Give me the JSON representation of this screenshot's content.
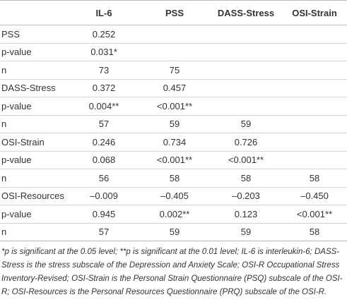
{
  "table": {
    "header": [
      "IL-6",
      "PSS",
      "DASS-Stress",
      "OSI-Strain"
    ],
    "rows": [
      [
        "PSS",
        "0.252"
      ],
      [
        "p-value",
        "0.031*"
      ],
      [
        "n",
        "73",
        "75"
      ],
      [
        "DASS-Stress",
        "0.372",
        "0.457"
      ],
      [
        "p-value",
        "0.004**",
        "<0.001**"
      ],
      [
        "n",
        "57",
        "59",
        "59"
      ],
      [
        "OSI-Strain",
        "0.246",
        "0.734",
        "0.726"
      ],
      [
        "p-value",
        "0.068",
        "<0.001**",
        "<0.001**"
      ],
      [
        "n",
        "56",
        "58",
        "58",
        "58"
      ],
      [
        "OSI-Resources",
        "–0.009",
        "–0.405",
        "–0.203",
        "–0.450"
      ],
      [
        "p-value",
        "0.945",
        "0.002**",
        "0.123",
        "<0.001**"
      ],
      [
        "n",
        "57",
        "59",
        "59",
        "58"
      ]
    ]
  },
  "footnote": "*p is significant at the 0.05 level; **p is significant at the 0.01 level; IL-6 is interleukin-6; DASS-Stress is the stress subscale of the Depression and Anxiety Scale; OSI-R Occupational Stress Inventory-Revised; OSI-Strain is the Personal Strain Questionnaire (PSQ) subscale of the OSI-R; OSI-Resources is the Personal Resources Questionnaire (PRQ) subscale of the OSI-R."
}
